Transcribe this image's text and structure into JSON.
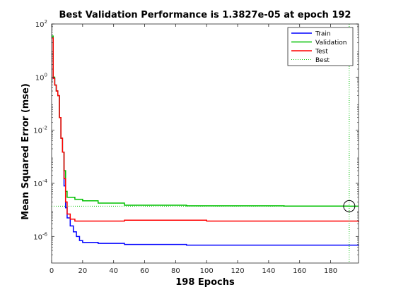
{
  "chart_data": {
    "type": "line",
    "title": "Best Validation Performance is 1.3827e-05 at epoch 192",
    "xlabel": "198 Epochs",
    "ylabel": "Mean Squared Error  (mse)",
    "yscale": "log",
    "xlim": [
      0,
      198
    ],
    "ylim": [
      1e-07,
      100
    ],
    "x_ticks": [
      0,
      20,
      40,
      60,
      80,
      100,
      120,
      140,
      160,
      180
    ],
    "y_ticks": [
      {
        "value": 1e-06,
        "base": "10",
        "exp": "-6"
      },
      {
        "value": 0.0001,
        "base": "10",
        "exp": "-4"
      },
      {
        "value": 0.01,
        "base": "10",
        "exp": "-2"
      },
      {
        "value": 1,
        "base": "10",
        "exp": "0"
      },
      {
        "value": 100,
        "base": "10",
        "exp": "2"
      }
    ],
    "grid": false,
    "legend_position": "top-right",
    "series": [
      {
        "name": "Train",
        "color": "#0000ff",
        "points": [
          [
            0,
            30
          ],
          [
            1,
            0.9
          ],
          [
            2,
            0.5
          ],
          [
            3,
            0.3
          ],
          [
            4,
            0.2
          ],
          [
            5,
            0.03
          ],
          [
            6,
            0.005
          ],
          [
            7,
            0.0015
          ],
          [
            8,
            8e-05
          ],
          [
            9,
            1.2e-05
          ],
          [
            10,
            5e-06
          ],
          [
            12,
            2.5e-06
          ],
          [
            14,
            1.5e-06
          ],
          [
            16,
            1e-06
          ],
          [
            18,
            7e-07
          ],
          [
            20,
            6e-07
          ],
          [
            30,
            5.5e-07
          ],
          [
            47,
            5e-07
          ],
          [
            87,
            4.7e-07
          ],
          [
            198,
            4.5e-07
          ]
        ]
      },
      {
        "name": "Validation",
        "color": "#00c000",
        "points": [
          [
            0,
            35
          ],
          [
            1,
            1.0
          ],
          [
            2,
            0.5
          ],
          [
            3,
            0.3
          ],
          [
            4,
            0.2
          ],
          [
            5,
            0.03
          ],
          [
            6,
            0.005
          ],
          [
            7,
            0.0015
          ],
          [
            8,
            0.0003
          ],
          [
            9,
            5e-05
          ],
          [
            10,
            3e-05
          ],
          [
            15,
            2.5e-05
          ],
          [
            20,
            2.2e-05
          ],
          [
            30,
            1.8e-05
          ],
          [
            47,
            1.5e-05
          ],
          [
            87,
            1.42e-05
          ],
          [
            150,
            1.39e-05
          ],
          [
            192,
            1.38e-05
          ],
          [
            198,
            1.38e-05
          ]
        ]
      },
      {
        "name": "Test",
        "color": "#ff0000",
        "points": [
          [
            0,
            30
          ],
          [
            1,
            0.9
          ],
          [
            2,
            0.5
          ],
          [
            3,
            0.3
          ],
          [
            4,
            0.2
          ],
          [
            5,
            0.03
          ],
          [
            6,
            0.005
          ],
          [
            7,
            0.0015
          ],
          [
            8,
            0.00015
          ],
          [
            9,
            2e-05
          ],
          [
            10,
            7e-06
          ],
          [
            12,
            4.5e-06
          ],
          [
            15,
            3.8e-06
          ],
          [
            30,
            3.8e-06
          ],
          [
            47,
            4.1e-06
          ],
          [
            100,
            3.8e-06
          ],
          [
            198,
            3.5e-06
          ]
        ]
      }
    ],
    "best": {
      "name": "Best",
      "epoch": 192,
      "value": 1.3827e-05,
      "color": "#00c000"
    }
  }
}
